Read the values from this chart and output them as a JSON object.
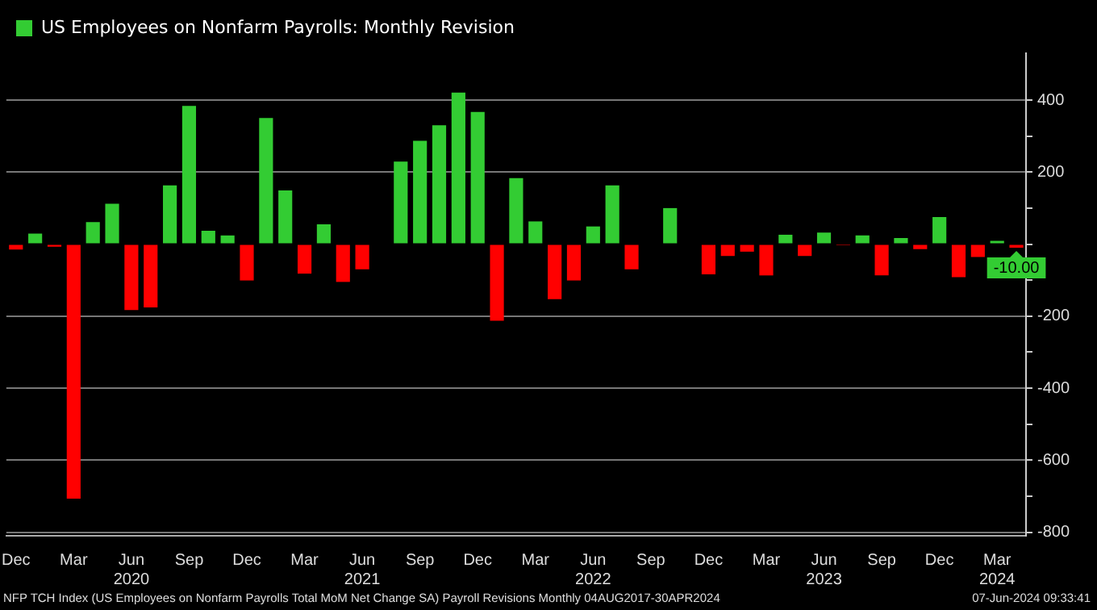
{
  "chart_data": {
    "type": "bar",
    "categories": [
      "Dec",
      null,
      null,
      "Mar",
      null,
      null,
      "Jun\n2020",
      null,
      null,
      "Sep",
      null,
      null,
      "Dec",
      null,
      null,
      "Mar",
      null,
      null,
      "Jun\n2021",
      null,
      null,
      "Sep",
      null,
      null,
      "Dec",
      null,
      null,
      "Mar",
      null,
      null,
      "Jun\n2022",
      null,
      null,
      "Sep",
      null,
      null,
      "Dec",
      null,
      null,
      "Mar",
      null,
      null,
      "Jun\n2023",
      null,
      null,
      "Sep",
      null,
      null,
      "Dec",
      null,
      null,
      "Mar\n2024",
      null
    ],
    "series": [
      {
        "name": "US Employees on Nonfarm Payrolls: Monthly Revision",
        "color": "#33cc33",
        "values": [
          -15,
          29,
          -7,
          -707,
          61,
          112,
          -183,
          -176,
          163,
          384,
          37,
          24,
          -101,
          350,
          149,
          -82,
          55,
          -105,
          -70,
          null,
          229,
          287,
          330,
          421,
          367,
          -213,
          183,
          63,
          -153,
          -101,
          49,
          163,
          -70,
          null,
          100,
          null,
          -84,
          -33,
          -21,
          -87,
          26,
          -33,
          32,
          -1,
          24,
          -87,
          17,
          -14,
          75,
          -92,
          -36,
          9,
          -10
        ],
        "colors": [
          "#ff0000",
          "#33cc33",
          "#ff0000",
          "#ff0000",
          "#33cc33",
          "#33cc33",
          "#ff0000",
          "#ff0000",
          "#33cc33",
          "#33cc33",
          "#33cc33",
          "#33cc33",
          "#ff0000",
          "#33cc33",
          "#33cc33",
          "#ff0000",
          "#33cc33",
          "#ff0000",
          "#ff0000",
          "#33cc33",
          "#33cc33",
          "#33cc33",
          "#33cc33",
          "#33cc33",
          "#33cc33",
          "#ff0000",
          "#33cc33",
          "#33cc33",
          "#ff0000",
          "#ff0000",
          "#33cc33",
          "#33cc33",
          "#ff0000",
          "#ff0000",
          "#33cc33",
          "#33cc33",
          "#ff0000",
          "#ff0000",
          "#ff0000",
          "#ff0000",
          "#33cc33",
          "#ff0000",
          "#33cc33",
          "#ff0000",
          "#33cc33",
          "#ff0000",
          "#33cc33",
          "#ff0000",
          "#33cc33",
          "#ff0000",
          "#ff0000",
          "#33cc33",
          "#ff0000"
        ],
        "value_labels": [
          null,
          null,
          null,
          null,
          null,
          null,
          null,
          null,
          null,
          null,
          null,
          null,
          null,
          null,
          null,
          null,
          null,
          null,
          null,
          null,
          null,
          null,
          null,
          null,
          null,
          null,
          null,
          null,
          null,
          null,
          null,
          null,
          null,
          null,
          null,
          null,
          null,
          null,
          null,
          null,
          null,
          null,
          null,
          null,
          null,
          null,
          null,
          null,
          null,
          null,
          null,
          null,
          "-10.00"
        ]
      }
    ],
    "ylim": [
      -810,
      530
    ],
    "yticks": [
      -800,
      {
        "value": -700,
        "label": null
      },
      -600,
      {
        "value": -500,
        "label": null
      },
      -400,
      {
        "value": -300,
        "label": null
      },
      -200,
      {
        "value": -100,
        "label": null
      },
      {
        "value": 0,
        "label": null
      },
      {
        "value": 100,
        "label": null
      },
      200,
      {
        "value": 300,
        "label": null
      },
      400
    ],
    "grid": "y",
    "legend": "top left",
    "annotations": [
      "NFP TCH Index (US Employees on Nonfarm Payrolls Total MoM Net Change SA) Payroll Revisions  Monthly 04AUG2017-30APR2024",
      "07-Jun-2024 09:33:41"
    ]
  }
}
